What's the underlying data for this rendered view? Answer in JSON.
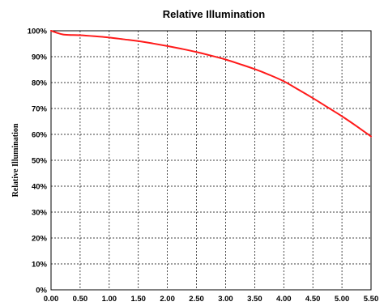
{
  "chart_data": {
    "type": "line",
    "title": "Relative Illumination",
    "xlabel": "",
    "ylabel": "Relative Illumination",
    "xlim": [
      0,
      5.5
    ],
    "ylim": [
      0,
      100
    ],
    "grid": true,
    "x_ticks": [
      "0.00",
      "0.50",
      "1.00",
      "1.50",
      "2.00",
      "2.50",
      "3.00",
      "3.50",
      "4.00",
      "4.50",
      "5.00",
      "5.50"
    ],
    "y_ticks": [
      "0%",
      "10%",
      "20%",
      "30%",
      "40%",
      "50%",
      "60%",
      "70%",
      "80%",
      "90%",
      "100%"
    ],
    "series": [
      {
        "color": "#ff1a1a",
        "x": [
          0,
          0.1,
          0.2,
          0.3,
          0.5,
          0.75,
          1.0,
          1.25,
          1.5,
          1.75,
          2.0,
          2.25,
          2.5,
          2.75,
          3.0,
          3.25,
          3.5,
          3.75,
          4.0,
          4.25,
          4.5,
          4.75,
          5.0,
          5.25,
          5.5
        ],
        "values": [
          100,
          99.2,
          98.6,
          98.4,
          98.3,
          97.9,
          97.4,
          96.7,
          96.0,
          95.1,
          94.1,
          93.0,
          91.8,
          90.4,
          88.9,
          87.1,
          85.2,
          83.0,
          80.5,
          77.3,
          74.0,
          70.5,
          67.0,
          63.2,
          59.2
        ]
      }
    ]
  }
}
